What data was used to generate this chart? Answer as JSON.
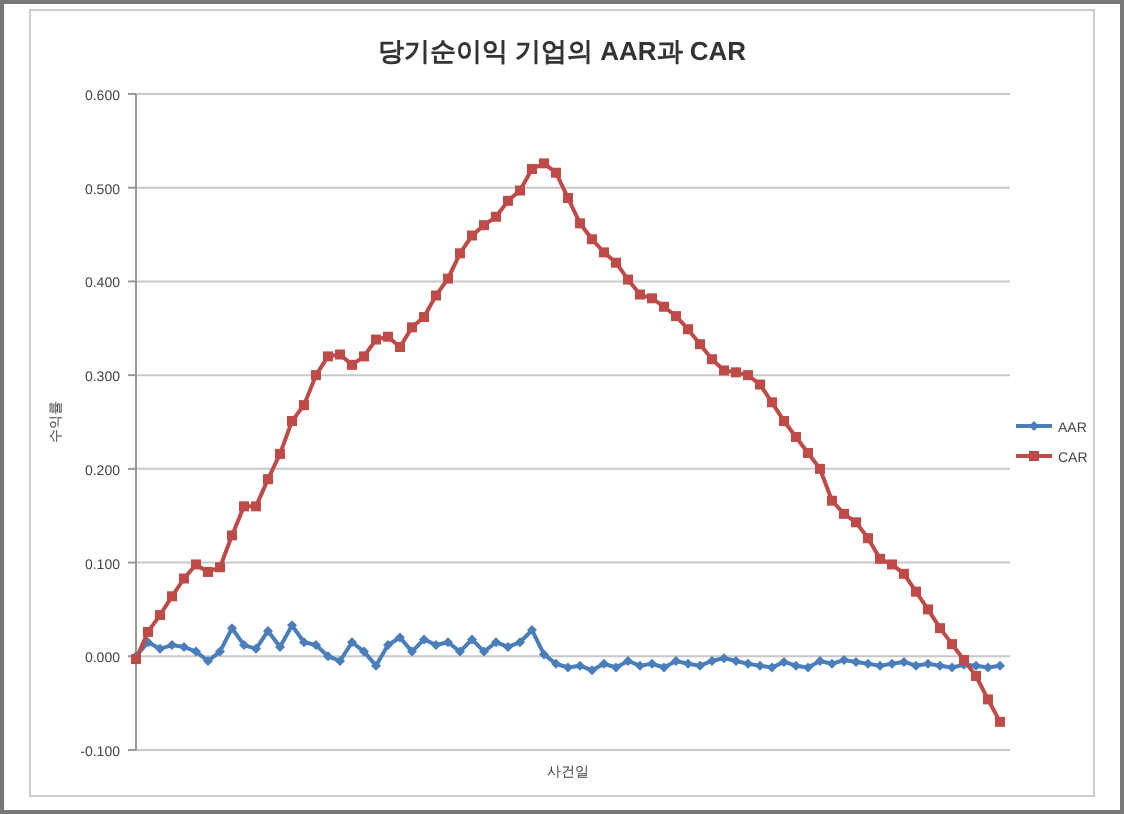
{
  "chart_data": {
    "type": "line",
    "title": "당기순이익 기업의 AAR과 CAR",
    "xlabel": "사건일",
    "ylabel": "수익률",
    "categories": [
      null,
      null,
      null,
      null,
      null,
      null,
      null,
      null,
      null,
      null,
      null,
      null,
      null,
      null,
      null,
      null,
      null,
      null,
      null,
      null,
      null,
      null,
      null,
      null,
      null,
      null,
      null,
      null,
      null,
      null,
      null,
      null,
      null,
      null,
      null,
      null,
      null,
      null,
      null,
      null,
      null,
      null,
      null,
      null,
      null,
      null,
      null,
      null,
      null,
      null,
      null,
      null,
      null,
      null,
      null,
      null,
      null,
      null,
      null,
      null,
      null,
      null,
      null,
      null,
      null,
      null,
      null,
      null,
      null,
      null,
      null,
      null,
      null
    ],
    "series": [
      {
        "name": "AAR",
        "color": "#4a7ebb",
        "marker": "diamond",
        "values": [
          0.0,
          0.015,
          0.008,
          0.012,
          0.01,
          0.005,
          -0.005,
          0.005,
          0.03,
          0.012,
          0.008,
          0.027,
          0.01,
          0.033,
          0.015,
          0.012,
          0.0,
          -0.005,
          0.015,
          0.005,
          -0.01,
          0.012,
          0.02,
          0.005,
          0.018,
          0.012,
          0.015,
          0.005,
          0.018,
          0.005,
          0.015,
          0.01,
          0.015,
          0.028,
          0.002,
          -0.008,
          -0.012,
          -0.01,
          -0.015,
          -0.008,
          -0.012,
          -0.005,
          -0.01,
          -0.008,
          -0.012,
          -0.005,
          -0.008,
          -0.01,
          -0.005,
          -0.002,
          -0.005,
          -0.008,
          -0.01,
          -0.012,
          -0.006,
          -0.01,
          -0.012,
          -0.005,
          -0.008,
          -0.004,
          -0.006,
          -0.008,
          -0.01,
          -0.008,
          -0.006,
          -0.01,
          -0.008,
          -0.01,
          -0.012,
          -0.009,
          -0.01,
          -0.012,
          -0.01
        ]
      },
      {
        "name": "CAR",
        "color": "#be4b48",
        "marker": "square",
        "values": [
          -0.003,
          0.026,
          0.044,
          0.064,
          0.083,
          0.098,
          0.09,
          0.095,
          0.129,
          0.16,
          0.16,
          0.189,
          0.216,
          0.251,
          0.268,
          0.3,
          0.32,
          0.322,
          0.311,
          0.32,
          0.338,
          0.341,
          0.33,
          0.351,
          0.362,
          0.385,
          0.403,
          0.43,
          0.449,
          0.46,
          0.469,
          0.486,
          0.497,
          0.52,
          0.526,
          0.516,
          0.489,
          0.462,
          0.445,
          0.431,
          0.42,
          0.402,
          0.386,
          0.382,
          0.373,
          0.363,
          0.349,
          0.333,
          0.317,
          0.305,
          0.303,
          0.3,
          0.29,
          0.271,
          0.251,
          0.234,
          0.217,
          0.2,
          0.166,
          0.152,
          0.143,
          0.126,
          0.104,
          0.098,
          0.088,
          0.069,
          0.05,
          0.03,
          0.013,
          -0.004,
          -0.021,
          -0.046,
          -0.07
        ]
      }
    ],
    "ylim": [
      -0.1,
      0.6
    ],
    "yticks": [
      {
        "value": -0.1,
        "label": "-0.100"
      },
      {
        "value": 0,
        "label": "0.000"
      },
      {
        "value": 0.1,
        "label": "0.100"
      },
      {
        "value": 0.2,
        "label": "0.200"
      },
      {
        "value": 0.3,
        "label": "0.300"
      },
      {
        "value": 0.4,
        "label": "0.400"
      },
      {
        "value": 0.5,
        "label": "0.500"
      },
      {
        "value": 0.6,
        "label": "0.600"
      }
    ],
    "grid": "y",
    "legend": "right"
  }
}
